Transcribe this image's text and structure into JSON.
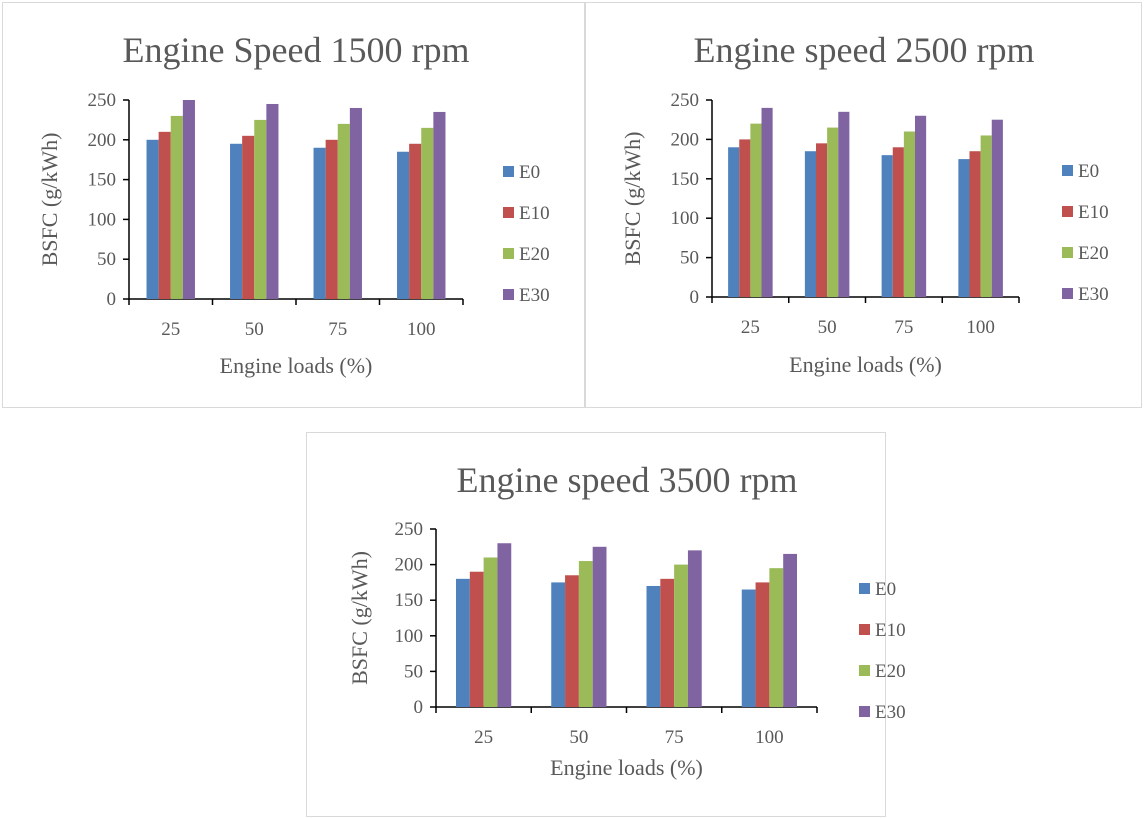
{
  "chart_data": [
    {
      "type": "bar",
      "title": "Engine Speed 1500 rpm",
      "xlabel": "Engine loads (%)",
      "ylabel": "BSFC (g/kWh)",
      "categories": [
        "25",
        "50",
        "75",
        "100"
      ],
      "ylim": [
        0,
        250
      ],
      "yticks": [
        0,
        50,
        100,
        150,
        200,
        250
      ],
      "legend_position": "right",
      "grid": false,
      "series": [
        {
          "name": "E0",
          "color": "#4f81bd",
          "values": [
            200,
            195,
            190,
            185
          ]
        },
        {
          "name": "E10",
          "color": "#c0504d",
          "values": [
            210,
            205,
            200,
            195
          ]
        },
        {
          "name": "E20",
          "color": "#9bbb59",
          "values": [
            230,
            225,
            220,
            215
          ]
        },
        {
          "name": "E30",
          "color": "#8064a2",
          "values": [
            250,
            245,
            240,
            235
          ]
        }
      ]
    },
    {
      "type": "bar",
      "title": "Engine speed 2500 rpm",
      "xlabel": "Engine loads (%)",
      "ylabel": "BSFC (g/kWh)",
      "categories": [
        "25",
        "50",
        "75",
        "100"
      ],
      "ylim": [
        0,
        250
      ],
      "yticks": [
        0,
        50,
        100,
        150,
        200,
        250
      ],
      "legend_position": "right",
      "grid": false,
      "series": [
        {
          "name": "E0",
          "color": "#4f81bd",
          "values": [
            190,
            185,
            180,
            175
          ]
        },
        {
          "name": "E10",
          "color": "#c0504d",
          "values": [
            200,
            195,
            190,
            185
          ]
        },
        {
          "name": "E20",
          "color": "#9bbb59",
          "values": [
            220,
            215,
            210,
            205
          ]
        },
        {
          "name": "E30",
          "color": "#8064a2",
          "values": [
            240,
            235,
            230,
            225
          ]
        }
      ]
    },
    {
      "type": "bar",
      "title": "Engine speed 3500 rpm",
      "xlabel": "Engine loads (%)",
      "ylabel": "BSFC (g/kWh)",
      "categories": [
        "25",
        "50",
        "75",
        "100"
      ],
      "ylim": [
        0,
        250
      ],
      "yticks": [
        0,
        50,
        100,
        150,
        200,
        250
      ],
      "legend_position": "right",
      "grid": false,
      "series": [
        {
          "name": "E0",
          "color": "#4f81bd",
          "values": [
            180,
            175,
            170,
            165
          ]
        },
        {
          "name": "E10",
          "color": "#c0504d",
          "values": [
            190,
            185,
            180,
            175
          ]
        },
        {
          "name": "E20",
          "color": "#9bbb59",
          "values": [
            210,
            205,
            200,
            195
          ]
        },
        {
          "name": "E30",
          "color": "#8064a2",
          "values": [
            230,
            225,
            220,
            215
          ]
        }
      ]
    }
  ]
}
